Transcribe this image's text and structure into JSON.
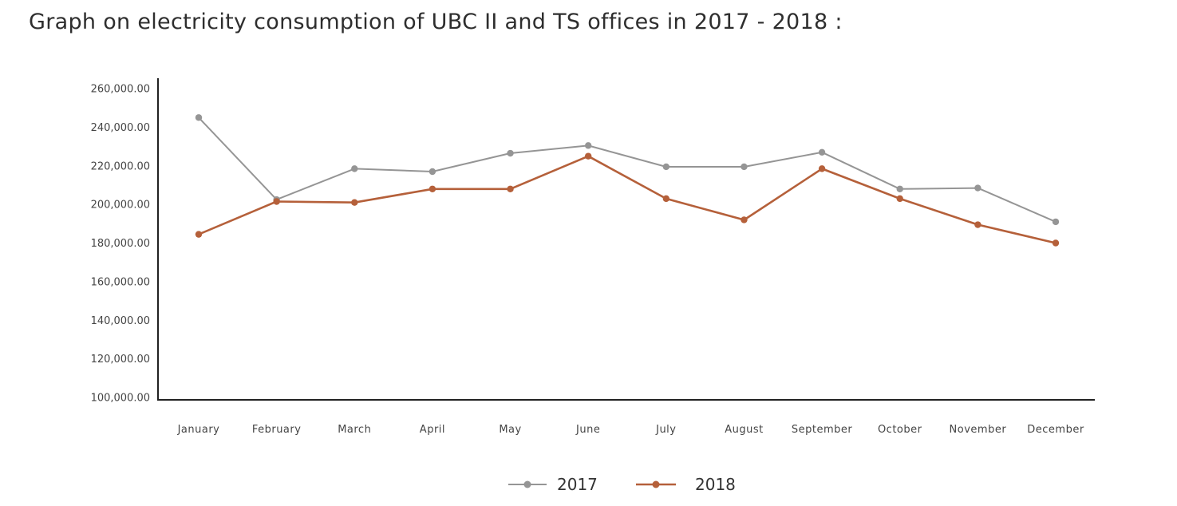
{
  "chart_data": {
    "type": "line",
    "title": "Graph on electricity consumption of UBC II and TS offices in 2017 - 2018 :",
    "categories": [
      "January",
      "February",
      "March",
      "April",
      "May",
      "June",
      "July",
      "August",
      "September",
      "October",
      "November",
      "December"
    ],
    "series": [
      {
        "name": "2017",
        "color": "#959595",
        "values": [
          245000,
          202500,
          218500,
          217000,
          226500,
          230500,
          219500,
          219500,
          227000,
          208000,
          208500,
          191000
        ]
      },
      {
        "name": "2018",
        "color": "#b5603a",
        "values": [
          184500,
          201500,
          201000,
          208000,
          208000,
          225000,
          203000,
          192000,
          218500,
          203000,
          189500,
          180000
        ]
      }
    ],
    "ylim": [
      100000,
      260000
    ],
    "yticks": [
      "100,000.00",
      "120,000.00",
      "140,000.00",
      "160,000.00",
      "180,000.00",
      "200,000.00",
      "220,000.00",
      "240,000.00",
      "260,000.00"
    ],
    "grid": false,
    "legend_position": "bottom-center"
  }
}
